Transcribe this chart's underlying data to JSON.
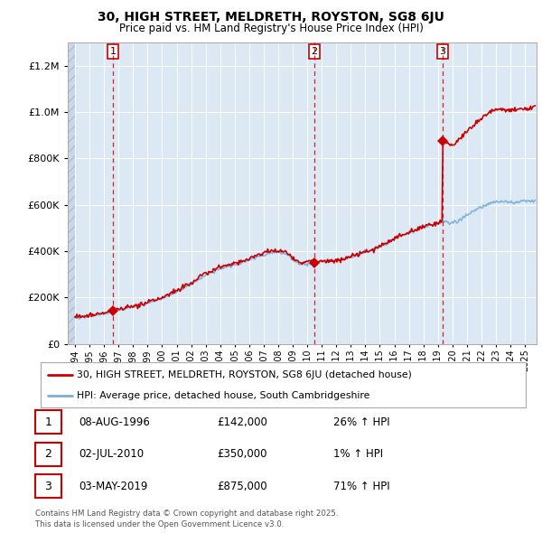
{
  "title": "30, HIGH STREET, MELDRETH, ROYSTON, SG8 6JU",
  "subtitle": "Price paid vs. HM Land Registry's House Price Index (HPI)",
  "bg_color": "#ffffff",
  "plot_bg_color": "#dce9f5",
  "grid_color": "#ffffff",
  "sale_info": [
    {
      "num": "1",
      "date": "08-AUG-1996",
      "price": "£142,000",
      "pct": "26% ↑ HPI"
    },
    {
      "num": "2",
      "date": "02-JUL-2010",
      "price": "£350,000",
      "pct": "1% ↑ HPI"
    },
    {
      "num": "3",
      "date": "03-MAY-2019",
      "price": "£875,000",
      "pct": "71% ↑ HPI"
    }
  ],
  "legend_line1": "30, HIGH STREET, MELDRETH, ROYSTON, SG8 6JU (detached house)",
  "legend_line2": "HPI: Average price, detached house, South Cambridgeshire",
  "footer1": "Contains HM Land Registry data © Crown copyright and database right 2025.",
  "footer2": "This data is licensed under the Open Government Licence v3.0.",
  "red_line_color": "#cc0000",
  "blue_line_color": "#7aaed6",
  "dashed_line_color": "#cc0000",
  "ylim": [
    0,
    1300000
  ],
  "yticks": [
    0,
    200000,
    400000,
    600000,
    800000,
    1000000,
    1200000
  ],
  "xlim_start": 1993.5,
  "xlim_end": 2025.8,
  "sale_date_nums": [
    1996.604,
    2010.496,
    2019.331
  ],
  "sale_prices": [
    142000,
    350000,
    875000
  ],
  "sale_labels": [
    "1",
    "2",
    "3"
  ]
}
